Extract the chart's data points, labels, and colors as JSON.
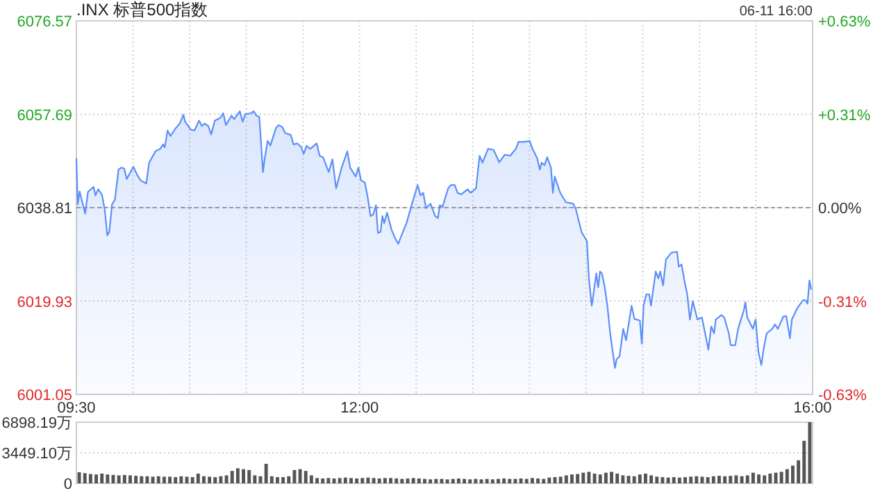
{
  "chart_data": [
    {
      "type": "area",
      "title": ".INX 标普500指数",
      "annotations": [
        "06-11 16:00"
      ],
      "xlim": [
        9.5,
        16
      ],
      "xticks": [
        {
          "value": 9.5,
          "label": "09:30"
        },
        {
          "value": 10,
          "label": null
        },
        {
          "value": 10.5,
          "label": null
        },
        {
          "value": 11,
          "label": null
        },
        {
          "value": 11.5,
          "label": null
        },
        {
          "value": 12,
          "label": "12:00"
        },
        {
          "value": 12.5,
          "label": null
        },
        {
          "value": 13,
          "label": null
        },
        {
          "value": 13.5,
          "label": null
        },
        {
          "value": 14,
          "label": null
        },
        {
          "value": 14.5,
          "label": null
        },
        {
          "value": 15,
          "label": null
        },
        {
          "value": 15.5,
          "label": null
        },
        {
          "value": 16,
          "label": "16:00"
        }
      ],
      "ylim": [
        6001.05,
        6076.57
      ],
      "yticks": [
        6001.05,
        6019.93,
        6038.81,
        6057.69,
        6076.57
      ],
      "y2lim": [
        -0.625,
        0.625
      ],
      "y2ticks": [
        {
          "value": -0.625,
          "label": "-0.63%"
        },
        {
          "value": -0.3125,
          "label": "-0.31%"
        },
        {
          "value": 0,
          "label": "0.00%"
        },
        {
          "value": 0.3125,
          "label": "+0.31%"
        },
        {
          "value": 0.625,
          "label": "+0.63%"
        }
      ],
      "grid": true,
      "ref_lines": [
        {
          "axis": "y",
          "value": 6038.81,
          "color": "#999999",
          "line_style": "dashed"
        }
      ],
      "series": [
        {
          "color": "#5b8ff9",
          "x": [
            9.5,
            9.512,
            9.528,
            9.578,
            9.602,
            9.652,
            9.668,
            9.692,
            9.725,
            9.75,
            9.773,
            9.79,
            9.815,
            9.84,
            9.872,
            9.897,
            9.922,
            9.945,
            10.003,
            10.035,
            10.068,
            10.117,
            10.142,
            10.198,
            10.24,
            10.265,
            10.28,
            10.305,
            10.33,
            10.378,
            10.412,
            10.445,
            10.46,
            10.51,
            10.542,
            10.583,
            10.608,
            10.632,
            10.665,
            10.69,
            10.722,
            10.772,
            10.797,
            10.82,
            10.87,
            10.893,
            10.943,
            10.968,
            10.992,
            11.042,
            11.065,
            11.09,
            11.115,
            11.147,
            11.163,
            11.188,
            11.213,
            11.262,
            11.287,
            11.318,
            11.343,
            11.393,
            11.417,
            11.45,
            11.483,
            11.507,
            11.532,
            11.565,
            11.622,
            11.647,
            11.678,
            11.728,
            11.76,
            11.793,
            11.842,
            11.892,
            11.917,
            11.965,
            11.99,
            12.013,
            12.047,
            12.072,
            12.097,
            12.12,
            12.145,
            12.162,
            12.185,
            12.202,
            12.218,
            12.243,
            12.283,
            12.317,
            12.342,
            12.365,
            12.415,
            12.463,
            12.513,
            12.537,
            12.562,
            12.587,
            12.627,
            12.668,
            12.692,
            12.708,
            12.733,
            12.782,
            12.807,
            12.84,
            12.865,
            12.897,
            12.955,
            12.98,
            13.028,
            13.06,
            13.085,
            13.135,
            13.183,
            13.233,
            13.282,
            13.33,
            13.38,
            13.403,
            13.453,
            13.502,
            13.527,
            13.568,
            13.592,
            13.608,
            13.633,
            13.657,
            13.69,
            13.707,
            13.723,
            13.772,
            13.822,
            13.887,
            13.91,
            13.96,
            14.008,
            14.025,
            14.05,
            14.065,
            14.09,
            14.107,
            14.123,
            14.14,
            14.165,
            14.188,
            14.213,
            14.255,
            14.27,
            14.295,
            14.328,
            14.353,
            14.402,
            14.427,
            14.475,
            14.492,
            14.508,
            14.532,
            14.557,
            14.573,
            14.615,
            14.638,
            14.655,
            14.68,
            14.705,
            14.753,
            14.803,
            14.818,
            14.843,
            14.868,
            14.893,
            14.917,
            14.942,
            14.983,
            15.023,
            15.08,
            15.105,
            15.13,
            15.145,
            15.195,
            15.22,
            15.26,
            15.277,
            15.317,
            15.342,
            15.392,
            15.407,
            15.423,
            15.473,
            15.497,
            15.522,
            15.547,
            15.57,
            15.595,
            15.643,
            15.668,
            15.693,
            15.742,
            15.767,
            15.8,
            15.817,
            15.865,
            15.915,
            15.938,
            15.955,
            15.972,
            15.988
          ],
          "values": [
            6048.8,
            6039.5,
            6042.1,
            6037.6,
            6042.0,
            6043.0,
            6041.3,
            6042.5,
            6041.5,
            6038.5,
            6033.2,
            6033.9,
            6039.5,
            6040.4,
            6046.5,
            6046.9,
            6046.7,
            6044.6,
            6047.1,
            6045.5,
            6044.3,
            6043.7,
            6047.9,
            6050.2,
            6050.7,
            6051.6,
            6051.0,
            6054.4,
            6053.3,
            6054.9,
            6055.8,
            6057.6,
            6056.2,
            6054.6,
            6054.4,
            6056.4,
            6055.3,
            6055.8,
            6055.3,
            6053.6,
            6056.4,
            6057.0,
            6057.9,
            6055.5,
            6057.4,
            6056.7,
            6058.3,
            6056.2,
            6057.7,
            6057.9,
            6058.3,
            6057.4,
            6057.2,
            6046.0,
            6048.8,
            6052.3,
            6051.4,
            6054.9,
            6055.5,
            6055.1,
            6053.9,
            6053.5,
            6051.6,
            6051.8,
            6051.1,
            6049.7,
            6051.3,
            6050.7,
            6051.8,
            6049.3,
            6049.0,
            6046.0,
            6048.6,
            6042.7,
            6046.9,
            6050.2,
            6046.9,
            6045.1,
            6046.9,
            6044.3,
            6043.9,
            6040.9,
            6037.1,
            6037.4,
            6039.3,
            6033.7,
            6033.9,
            6037.1,
            6035.7,
            6037.8,
            6034.3,
            6032.5,
            6031.5,
            6032.9,
            6035.7,
            6039.6,
            6043.4,
            6041.3,
            6041.8,
            6038.7,
            6039.6,
            6037.1,
            6036.7,
            6039.3,
            6039.0,
            6042.7,
            6043.4,
            6043.4,
            6041.8,
            6041.5,
            6042.5,
            6041.8,
            6042.7,
            6049.3,
            6047.9,
            6050.7,
            6050.5,
            6048.0,
            6049.5,
            6049.3,
            6050.7,
            6052.1,
            6052.1,
            6052.3,
            6050.7,
            6048.8,
            6046.5,
            6047.9,
            6047.4,
            6049.0,
            6046.9,
            6041.8,
            6045.1,
            6041.8,
            6039.9,
            6039.6,
            6038.5,
            6033.9,
            6032.0,
            6024.5,
            6019.0,
            6021.3,
            6025.5,
            6022.7,
            6025.9,
            6025.5,
            6022.7,
            6019.0,
            6013.4,
            6006.4,
            6008.2,
            6008.7,
            6014.3,
            6012.0,
            6019.0,
            6016.3,
            6016.0,
            6011.3,
            6019.0,
            6021.3,
            6021.3,
            6019.0,
            6025.9,
            6024.5,
            6025.9,
            6023.1,
            6028.3,
            6029.7,
            6029.9,
            6026.9,
            6027.3,
            6024.1,
            6021.3,
            6016.2,
            6019.9,
            6016.2,
            6016.6,
            6010.1,
            6014.8,
            6013.4,
            6016.2,
            6017.1,
            6016.6,
            6013.4,
            6011.0,
            6011.0,
            6014.3,
            6018.0,
            6019.7,
            6016.6,
            6014.3,
            6016.2,
            6009.6,
            6007.0,
            6010.6,
            6013.4,
            6014.3,
            6015.2,
            6014.3,
            6016.8,
            6016.9,
            6012.4,
            6016.2,
            6018.5,
            6020.1,
            6020.1,
            6019.4,
            6024.1,
            6022.2
          ]
        }
      ]
    },
    {
      "type": "bar",
      "tick_labels": "y",
      "grid": "y",
      "ylim": [
        0,
        6898.19
      ],
      "yticks": [
        0,
        {
          "value": 3449.1,
          "label": "3449.10万"
        },
        {
          "value": 6898.19,
          "label": "6898.19万"
        }
      ],
      "categories": [
        null,
        null,
        null,
        null,
        null,
        null,
        null,
        null,
        null,
        null,
        null,
        null,
        null,
        null,
        null,
        null,
        null,
        null,
        null,
        null,
        null,
        null,
        null,
        null,
        null,
        null,
        null,
        null,
        null,
        null,
        null,
        null,
        null,
        null,
        null,
        null,
        null,
        null,
        null,
        null,
        null,
        null,
        null,
        null,
        null,
        null,
        null,
        null,
        null,
        null,
        null,
        null,
        null,
        null,
        null,
        null,
        null,
        null,
        null,
        null,
        null,
        null,
        null,
        null,
        null,
        null,
        null,
        null,
        null,
        null,
        null,
        null,
        null,
        null,
        null,
        null,
        null,
        null,
        null,
        null,
        null,
        null,
        null,
        null,
        null,
        null,
        null,
        null,
        null,
        null,
        null,
        null,
        null,
        null,
        null,
        null,
        null,
        null,
        null,
        null,
        null,
        null,
        null,
        null,
        null,
        null,
        null,
        null,
        null,
        null,
        null,
        null,
        null,
        null,
        null,
        null,
        null,
        null,
        null,
        null,
        null,
        null,
        null,
        null,
        null,
        null,
        null,
        null,
        null,
        null
      ],
      "color": "#555555",
      "values": [
        1250,
        1150,
        1050,
        1000,
        1100,
        1000,
        950,
        900,
        950,
        900,
        850,
        800,
        800,
        750,
        800,
        750,
        750,
        700,
        800,
        750,
        700,
        1100,
        800,
        750,
        700,
        800,
        900,
        1400,
        1700,
        1600,
        1500,
        900,
        800,
        2200,
        800,
        700,
        700,
        800,
        1500,
        1600,
        1400,
        900,
        600,
        550,
        600,
        550,
        600,
        650,
        600,
        550,
        600,
        650,
        600,
        550,
        600,
        600,
        550,
        500,
        550,
        600,
        550,
        500,
        450,
        500,
        500,
        450,
        500,
        550,
        500,
        450,
        500,
        450,
        500,
        450,
        500,
        550,
        500,
        500,
        550,
        500,
        600,
        550,
        500,
        650,
        700,
        750,
        900,
        1000,
        1050,
        1200,
        1300,
        1100,
        1000,
        1200,
        1300,
        1100,
        900,
        850,
        800,
        1000,
        1100,
        900,
        750,
        700,
        650,
        700,
        650,
        700,
        750,
        800,
        750,
        700,
        800,
        850,
        800,
        850,
        900,
        800,
        900,
        1200,
        1000,
        900,
        1100,
        1200,
        1300,
        1600,
        2000,
        2600,
        4800,
        6898.19
      ]
    }
  ]
}
